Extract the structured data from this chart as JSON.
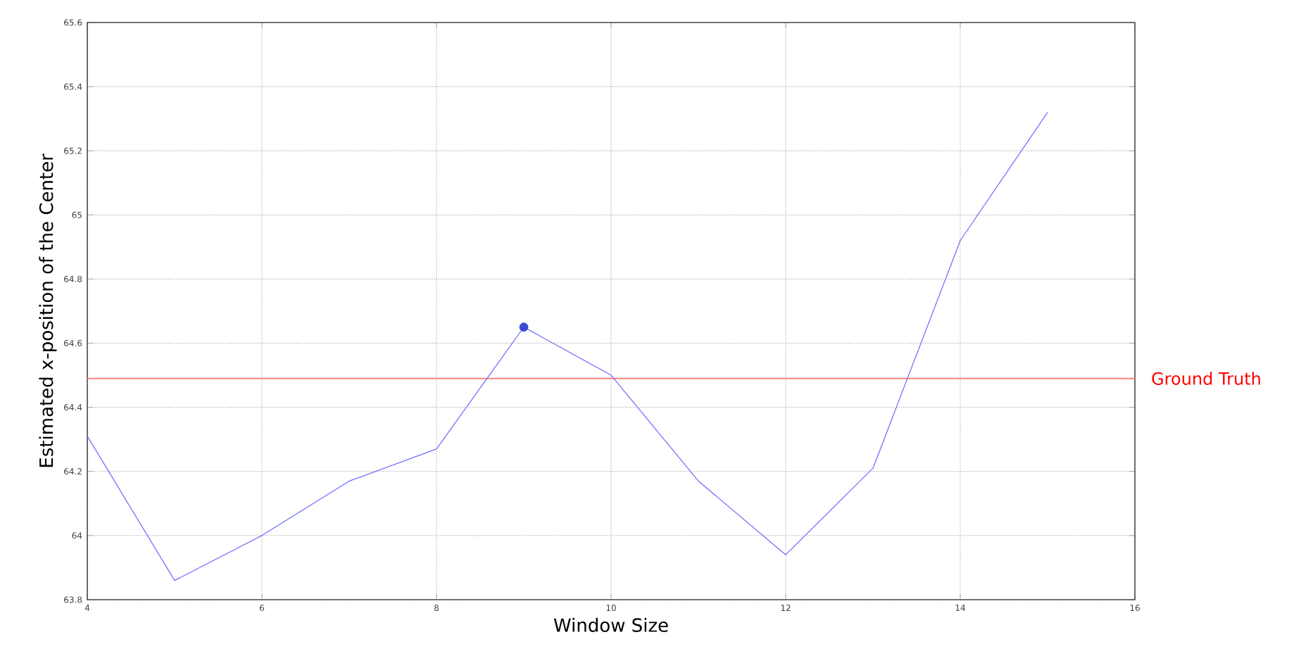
{
  "chart_data": {
    "type": "line",
    "xlabel": "Window Size",
    "ylabel": "Estimated x-position of the Center",
    "x": [
      4,
      5,
      6,
      7,
      8,
      9,
      10,
      11,
      12,
      13,
      14,
      15
    ],
    "series": [
      {
        "color": "#6a6aff",
        "values": [
          64.31,
          63.86,
          64.0,
          64.17,
          64.27,
          64.65,
          64.5,
          64.17,
          63.94,
          64.21,
          64.92,
          65.32
        ]
      },
      {
        "type": "scatter",
        "marker": "circle",
        "color": "#3a4ad0",
        "x": [
          9
        ],
        "values": [
          64.65
        ]
      }
    ],
    "xlim": [
      4,
      16
    ],
    "ylim": [
      63.8,
      65.6
    ],
    "xticks": [
      4,
      6,
      8,
      10,
      12,
      14,
      16
    ],
    "yticks": [
      63.8,
      64,
      64.2,
      64.4,
      64.6,
      64.8,
      65,
      65.2,
      65.4,
      65.6
    ],
    "grid": true,
    "ref_lines": [
      {
        "axis": "y",
        "value": 64.49,
        "label": "Ground Truth",
        "color": "#ff8080"
      }
    ]
  }
}
